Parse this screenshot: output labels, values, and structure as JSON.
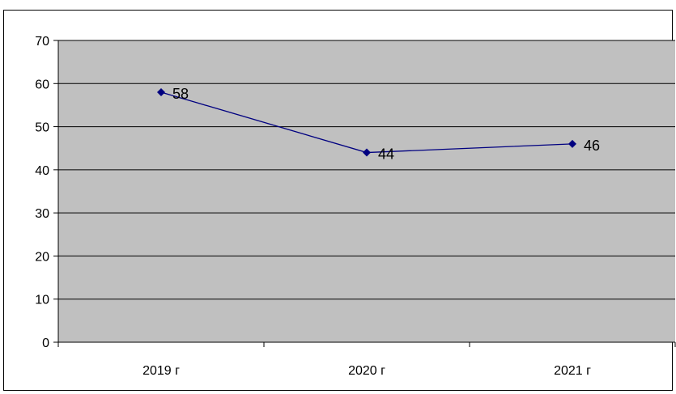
{
  "chart_data": {
    "type": "line",
    "title": "",
    "xlabel": "",
    "ylabel": "",
    "categories": [
      "2019 г",
      "2020 г",
      "2021 г"
    ],
    "series": [
      {
        "values": [
          58,
          44,
          46
        ],
        "color": "#000080"
      }
    ],
    "ylim": [
      0,
      70
    ],
    "yticks": [
      "0",
      "10",
      "20",
      "30",
      "40",
      "50",
      "60",
      "70"
    ],
    "data_labels": [
      "58",
      "44",
      "46"
    ],
    "grid": true,
    "legend": "none",
    "plot_background": "#c0c0c0",
    "gridline_color": "#000000"
  }
}
